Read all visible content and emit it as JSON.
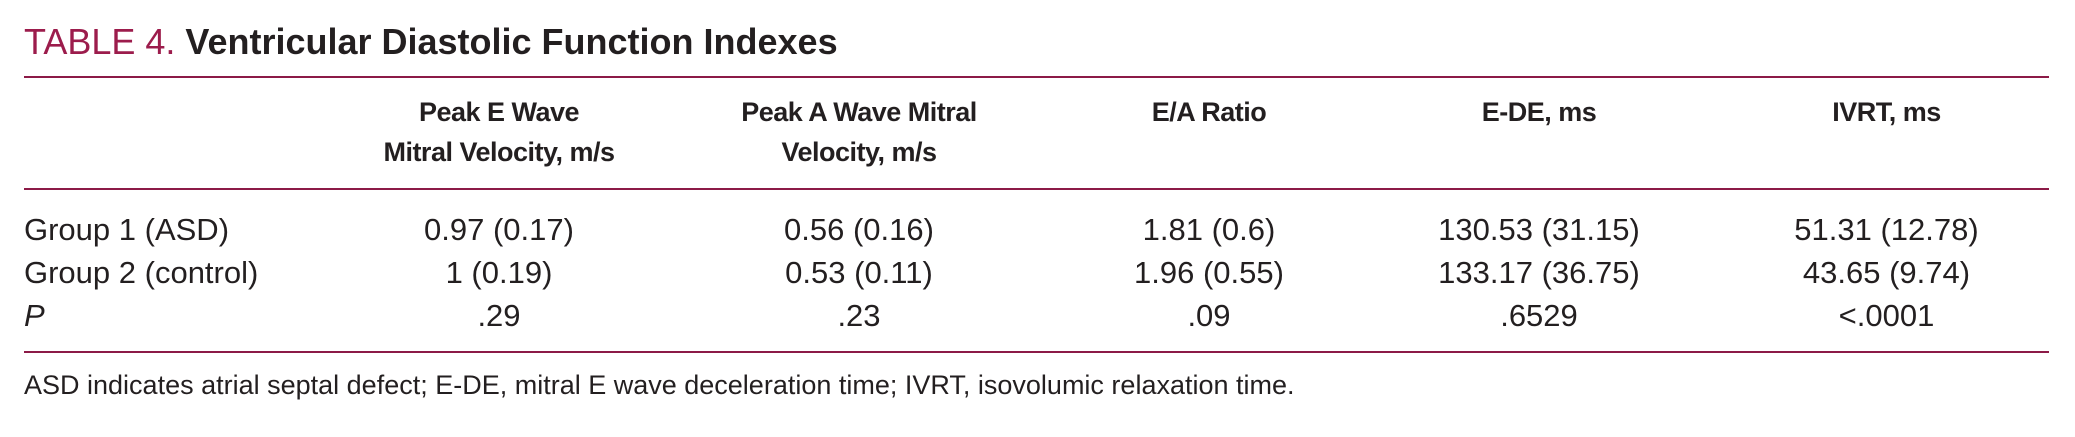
{
  "caption": {
    "label": "TABLE 4.",
    "title": "Ventricular Diastolic Function Indexes"
  },
  "table": {
    "headers": [
      "",
      "Peak E Wave Mitral Velocity, m/s",
      "Peak A Wave Mitral Velocity, m/s",
      "E/A Ratio",
      "E-DE, ms",
      "IVRT, ms"
    ],
    "header_lines": [
      [
        ""
      ],
      [
        "Peak E Wave",
        "Mitral Velocity, m/s"
      ],
      [
        "Peak A Wave Mitral",
        "Velocity, m/s"
      ],
      [
        "E/A Ratio"
      ],
      [
        "E-DE, ms"
      ],
      [
        "IVRT, ms"
      ]
    ],
    "rows": [
      {
        "label": "Group 1 (ASD)",
        "cells": [
          "0.97 (0.17)",
          "0.56 (0.16)",
          "1.81 (0.6)",
          "130.53 (31.15)",
          "51.31 (12.78)"
        ]
      },
      {
        "label": "Group 2 (control)",
        "cells": [
          "1 (0.19)",
          "0.53 (0.11)",
          "1.96 (0.55)",
          "133.17 (36.75)",
          "43.65 (9.74)"
        ]
      },
      {
        "label": "P",
        "cells": [
          ".29",
          ".23",
          ".09",
          ".6529",
          "<.0001"
        ]
      }
    ]
  },
  "footnote": "ASD indicates atrial septal defect; E-DE, mitral E wave deceleration time; IVRT, isovolumic relaxation time.",
  "colors": {
    "label": "#9c1c4c",
    "rule": "#8c1a47",
    "text": "#231f20"
  }
}
